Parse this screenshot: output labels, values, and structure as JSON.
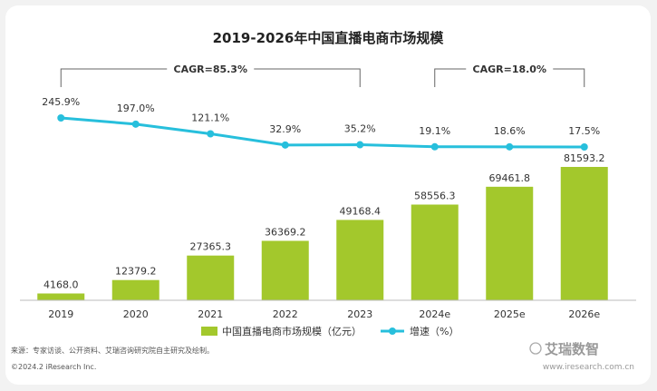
{
  "chart_data": {
    "type": "bar",
    "title": "2019-2026年中国直播电商市场规模",
    "categories": [
      "2019",
      "2020",
      "2021",
      "2022",
      "2023",
      "2024e",
      "2025e",
      "2026e"
    ],
    "series": [
      {
        "name": "中国直播电商市场规模（亿元）",
        "type": "bar",
        "values": [
          4168.0,
          12379.2,
          27365.3,
          36369.2,
          49168.4,
          58556.3,
          69461.8,
          81593.2
        ],
        "labels": [
          "4168.0",
          "12379.2",
          "27365.3",
          "36369.2",
          "49168.4",
          "58556.3",
          "69461.8",
          "81593.2"
        ]
      },
      {
        "name": "增速（%）",
        "type": "line",
        "values": [
          245.9,
          197.0,
          121.1,
          32.9,
          35.2,
          19.1,
          18.6,
          17.5
        ],
        "labels": [
          "245.9%",
          "197.0%",
          "121.1%",
          "32.9%",
          "35.2%",
          "19.1%",
          "18.6%",
          "17.5%"
        ]
      }
    ],
    "annotations": [
      {
        "text": "CAGR=85.3%",
        "from": "2019",
        "to": "2023"
      },
      {
        "text": "CAGR=18.0%",
        "from": "2024e",
        "to": "2026e"
      }
    ],
    "legend_position": "bottom",
    "grid": false,
    "colors": {
      "bar": "#a3c82c",
      "line": "#27bfdc"
    }
  },
  "footer": {
    "source": "来源：专家访谈、公开资料、艾瑞咨询研究院自主研究及绘制。",
    "copyright": "©2024.2 iResearch Inc.",
    "site": "www.iresearch.com.cn"
  },
  "watermark": "艾瑞数智"
}
